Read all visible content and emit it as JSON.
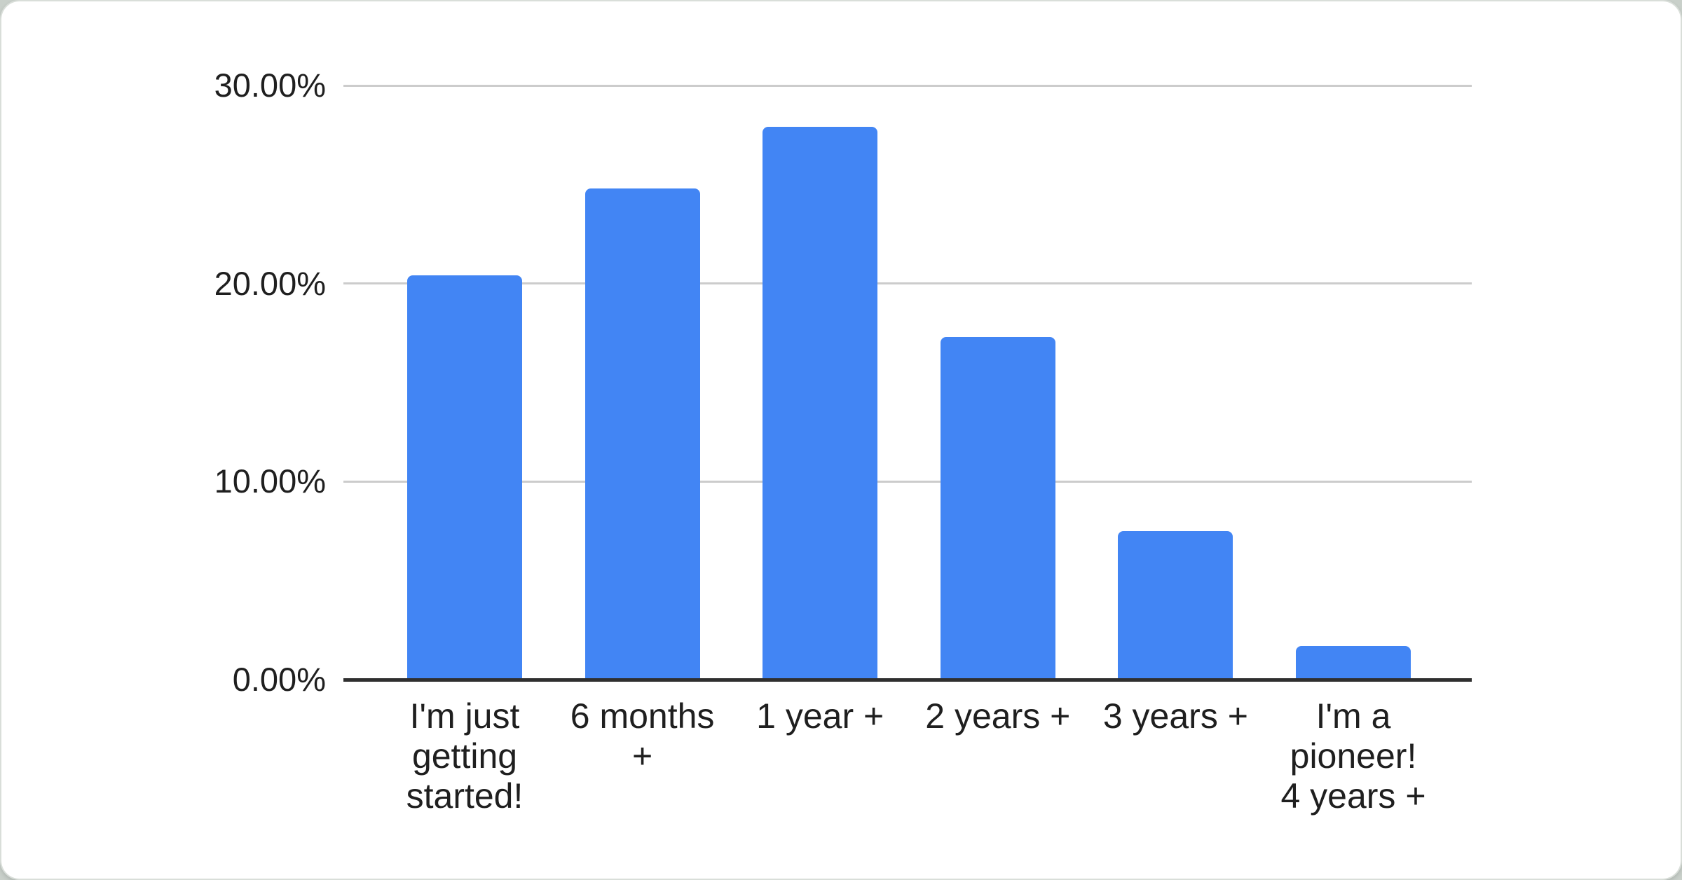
{
  "chart_data": {
    "type": "bar",
    "title": "",
    "xlabel": "",
    "ylabel": "",
    "categories": [
      "I'm just getting started!",
      "6 months +",
      "1 year +",
      "2 years +",
      "3 years +",
      "I'm a pioneer! 4 years +"
    ],
    "category_display_lines": [
      [
        "I'm just",
        "getting",
        "started!"
      ],
      [
        "6 months",
        "+"
      ],
      [
        "1 year +"
      ],
      [
        "2 years +"
      ],
      [
        "3 years +"
      ],
      [
        "I'm a",
        "pioneer!",
        "4 years +"
      ]
    ],
    "values": [
      20.4,
      24.8,
      27.9,
      17.3,
      7.5,
      1.7
    ],
    "unit": "%",
    "ylim": [
      0,
      30
    ],
    "ytick_values": [
      0,
      10,
      20,
      30
    ],
    "ytick_labels": [
      "0.00%",
      "10.00%",
      "20.00%",
      "30.00%"
    ],
    "grid": true,
    "legend_position": "none",
    "colors": {
      "bar": "#4285f4",
      "gridline": "#cccccc",
      "axis_line": "#2f2f2f",
      "text": "#1f1f1f",
      "card_background": "#ffffff",
      "page_background": "#c9d0ca",
      "card_border": "#d9ded9"
    }
  }
}
